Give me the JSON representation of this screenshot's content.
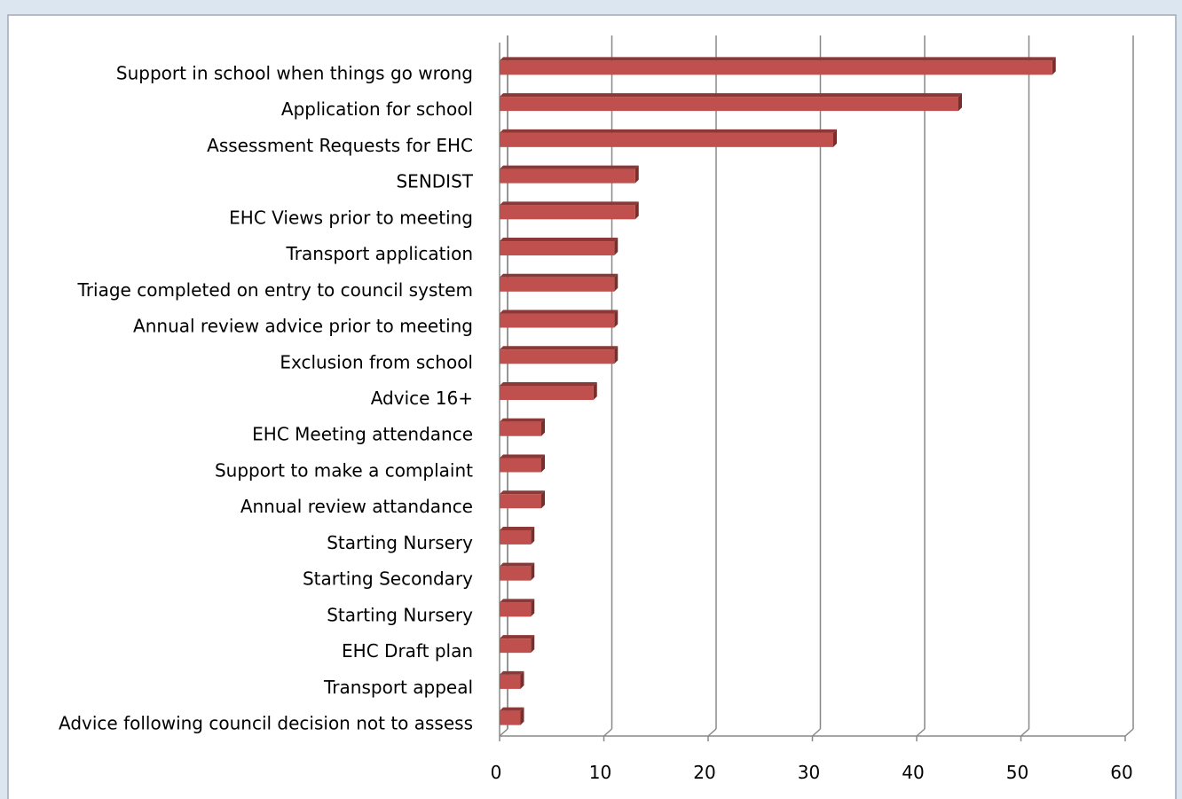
{
  "chart_data": {
    "type": "bar",
    "orientation": "horizontal",
    "categories": [
      "Support in school when things go wrong",
      "Application for school",
      "Assessment Requests for EHC",
      "SENDIST",
      "EHC Views prior to meeting",
      "Transport application",
      "Triage completed on entry to council system",
      "Annual review advice prior to meeting",
      "Exclusion from school",
      "Advice 16+",
      "EHC Meeting attendance",
      "Support to make a complaint",
      "Annual review attandance",
      "Starting Nursery",
      "Starting Secondary",
      "Starting Nursery",
      "EHC Draft plan",
      "Transport appeal",
      "Advice following council decision not to assess"
    ],
    "values": [
      53,
      44,
      32,
      13,
      13,
      11,
      11,
      11,
      11,
      9,
      4,
      4,
      4,
      3,
      3,
      3,
      3,
      2,
      2
    ],
    "color": "#c0504d",
    "xlim": [
      0,
      60
    ],
    "xticks": [
      0,
      10,
      20,
      30,
      40,
      50,
      60
    ],
    "grid": true
  }
}
